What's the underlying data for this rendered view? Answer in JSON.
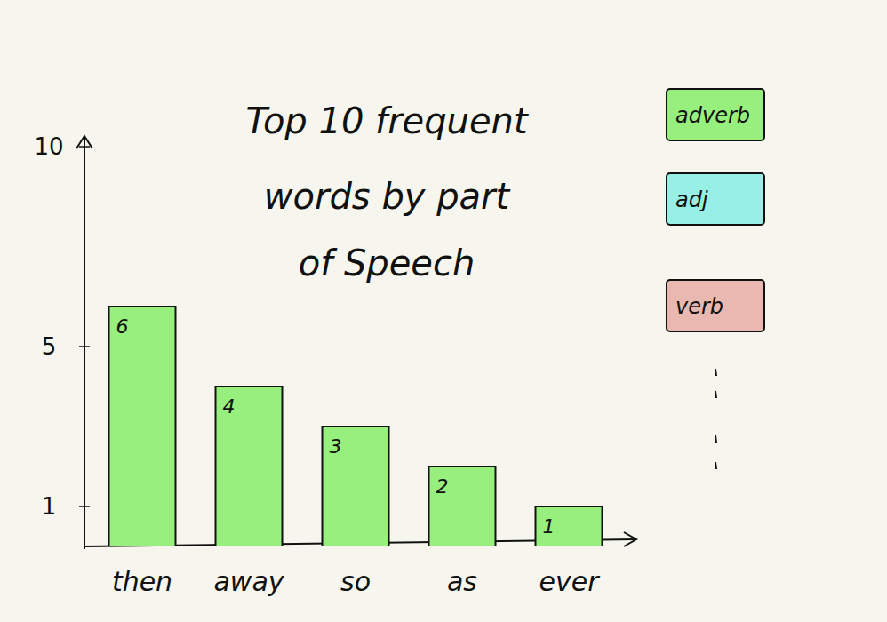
{
  "chart_data": {
    "type": "bar",
    "title": "Top 10 frequent words by part of Speech",
    "categories": [
      "then",
      "away",
      "so",
      "as",
      "ever"
    ],
    "series": [
      {
        "name": "adverb",
        "color": "#97ef7e",
        "values": [
          6,
          4,
          3,
          2,
          1
        ]
      },
      {
        "name": "adj",
        "color": "#98efe6",
        "values": [
          null,
          null,
          null,
          null,
          null
        ]
      },
      {
        "name": "verb",
        "color": "#e9b8b0",
        "values": [
          null,
          null,
          null,
          null,
          null
        ]
      }
    ],
    "ylim": [
      0,
      10
    ],
    "yticks": [
      1,
      5,
      10
    ],
    "data_labels": true,
    "legend": "right"
  }
}
